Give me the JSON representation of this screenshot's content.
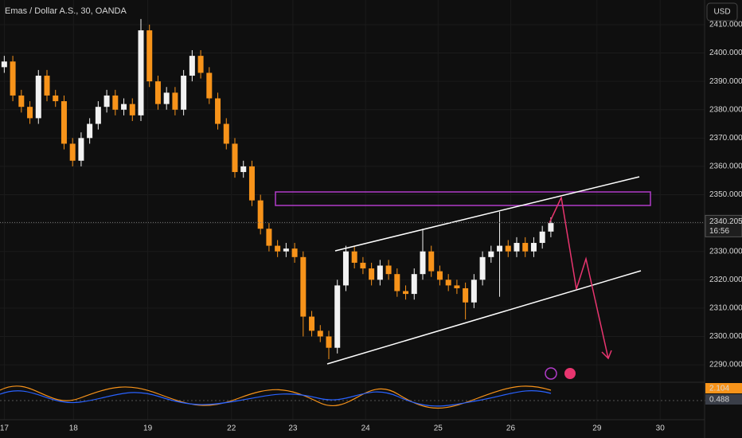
{
  "header": {
    "symbol": "Emas / Dollar A.S., 30, OANDA",
    "currency": "USD"
  },
  "chart_data": {
    "type": "candlestick",
    "open": [
      2395,
      2397,
      2385,
      2381,
      2377,
      2392,
      2385,
      2383,
      2368,
      2362,
      2370,
      2375,
      2381,
      2385,
      2380,
      2382,
      2378,
      2408,
      2390,
      2382,
      2386,
      2380,
      2392,
      2399,
      2393,
      2384,
      2375,
      2368,
      2358,
      2360,
      2348,
      2338,
      2332,
      2330,
      2331,
      2328,
      2307,
      2302,
      2300,
      2296,
      2318,
      2330,
      2326,
      2324,
      2320,
      2325,
      2322,
      2316,
      2315,
      2322,
      2330,
      2323,
      2320,
      2318,
      2317,
      2312,
      2320,
      2328,
      2330,
      2332,
      2330,
      2333,
      2330,
      2333,
      2337
    ],
    "high": [
      2399,
      2399,
      2387,
      2383,
      2394,
      2394,
      2387,
      2385,
      2370,
      2372,
      2377,
      2383,
      2387,
      2387,
      2384,
      2384,
      2412,
      2410,
      2392,
      2388,
      2388,
      2394,
      2401,
      2401,
      2395,
      2386,
      2377,
      2370,
      2362,
      2362,
      2350,
      2340,
      2334,
      2333,
      2333,
      2330,
      2309,
      2304,
      2302,
      2320,
      2332,
      2332,
      2328,
      2326,
      2327,
      2327,
      2324,
      2318,
      2324,
      2338,
      2332,
      2325,
      2322,
      2320,
      2319,
      2322,
      2330,
      2332,
      2344,
      2334,
      2335,
      2335,
      2335,
      2339,
      2342
    ],
    "low": [
      2393,
      2383,
      2379,
      2375,
      2375,
      2383,
      2381,
      2366,
      2360,
      2360,
      2368,
      2373,
      2379,
      2378,
      2378,
      2376,
      2376,
      2388,
      2380,
      2380,
      2378,
      2378,
      2390,
      2391,
      2382,
      2373,
      2366,
      2356,
      2356,
      2346,
      2336,
      2330,
      2328,
      2328,
      2326,
      2300,
      2300,
      2298,
      2292,
      2294,
      2316,
      2324,
      2322,
      2318,
      2318,
      2320,
      2314,
      2313,
      2313,
      2320,
      2321,
      2318,
      2316,
      2315,
      2306,
      2310,
      2318,
      2326,
      2314,
      2328,
      2328,
      2328,
      2328,
      2331,
      2335
    ],
    "close": [
      2397,
      2385,
      2381,
      2377,
      2392,
      2385,
      2383,
      2368,
      2362,
      2370,
      2375,
      2381,
      2385,
      2380,
      2382,
      2378,
      2408,
      2390,
      2382,
      2386,
      2380,
      2392,
      2399,
      2393,
      2384,
      2375,
      2368,
      2358,
      2360,
      2348,
      2338,
      2332,
      2330,
      2331,
      2328,
      2307,
      2302,
      2300,
      2296,
      2318,
      2330,
      2326,
      2324,
      2320,
      2325,
      2322,
      2316,
      2315,
      2322,
      2330,
      2323,
      2320,
      2318,
      2317,
      2312,
      2320,
      2328,
      2330,
      2332,
      2330,
      2333,
      2330,
      2333,
      2337,
      2340
    ],
    "up_color": "#f2f2f2",
    "down_color": "#f7931a",
    "xlim": [
      -0.5,
      82
    ],
    "xticks": [
      {
        "value": 0,
        "label": "17"
      },
      {
        "value": 8.1,
        "label": "18"
      },
      {
        "value": 16.8,
        "label": "19"
      },
      {
        "value": 26.6,
        "label": "22"
      },
      {
        "value": 33.8,
        "label": "23"
      },
      {
        "value": 42.3,
        "label": "24"
      },
      {
        "value": 50.8,
        "label": "25"
      },
      {
        "value": 59.3,
        "label": "26"
      },
      {
        "value": 69.4,
        "label": "29"
      },
      {
        "value": 76.8,
        "label": "30"
      }
    ],
    "ylim": [
      2284.4,
      2418.7
    ],
    "yticks": [
      {
        "value": 2290,
        "label": "2290.000"
      },
      {
        "value": 2300,
        "label": "2300.000"
      },
      {
        "value": 2310,
        "label": "2310.000"
      },
      {
        "value": 2320,
        "label": "2320.000"
      },
      {
        "value": 2330,
        "label": "2330.000"
      },
      {
        "value": 2340,
        "label": "2340.000"
      },
      {
        "value": 2350,
        "label": "2350.000"
      },
      {
        "value": 2360,
        "label": "2360.000"
      },
      {
        "value": 2370,
        "label": "2370.000"
      },
      {
        "value": 2380,
        "label": "2380.000"
      },
      {
        "value": 2390,
        "label": "2390.000"
      },
      {
        "value": 2400,
        "label": "2400.000"
      },
      {
        "value": 2410,
        "label": "2410.000"
      }
    ],
    "grid": true,
    "last_price": 2340.205,
    "countdown": "16:56",
    "indicator": {
      "value_a": 2.104,
      "value_b": 0.488,
      "color_a": "#f7931a",
      "color_b": "#3a3e48"
    }
  }
}
